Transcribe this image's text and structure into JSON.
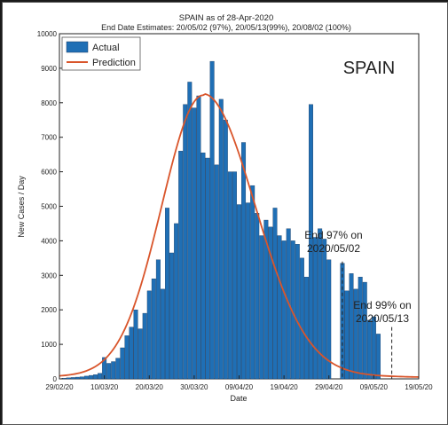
{
  "chart_data": {
    "type": "bar",
    "title": "SPAIN as of 28-Apr-2020",
    "subtitle": "End Date Estimates: 20/05/02 (97%), 20/05/13(99%), 20/08/02 (100%)",
    "country_label": "SPAIN",
    "xlabel": "Date",
    "ylabel": "New Cases / Day",
    "ylim": [
      0,
      10000
    ],
    "yticks": [
      0,
      1000,
      2000,
      3000,
      4000,
      5000,
      6000,
      7000,
      8000,
      9000,
      10000
    ],
    "xticks": [
      "29/02/20",
      "10/03/20",
      "20/03/20",
      "30/03/20",
      "09/04/20",
      "19/04/20",
      "29/04/20",
      "09/05/20",
      "19/05/20"
    ],
    "grid": false,
    "legend_position": "top-left",
    "series": [
      {
        "name": "Actual",
        "kind": "bar",
        "color": "#1f6fb5",
        "start_date": "2020-03-01",
        "values": [
          20,
          30,
          40,
          50,
          60,
          80,
          100,
          120,
          160,
          620,
          450,
          500,
          600,
          900,
          1250,
          1500,
          2000,
          1450,
          1900,
          2550,
          2900,
          3450,
          2600,
          4950,
          3650,
          4500,
          6600,
          7950,
          8600,
          7850,
          8200,
          6550,
          6400,
          9200,
          6200,
          8100,
          7500,
          6000,
          6000,
          5050,
          6850,
          5100,
          5600,
          4800,
          4150,
          4600,
          4400,
          4950,
          4150,
          4000,
          4350,
          4000,
          3900,
          3500,
          2950,
          7950,
          4100,
          4350,
          4050,
          3450,
          0,
          0,
          3350,
          2550,
          3050,
          2600,
          2950,
          2800,
          1700,
          1800,
          1300
        ]
      },
      {
        "name": "Prediction",
        "kind": "line",
        "color": "#d9552b"
      }
    ],
    "annotations": [
      {
        "line1": "End 97% on",
        "line2": "2020/05/02",
        "date": "2020-05-02"
      },
      {
        "line1": "End 99% on",
        "line2": "2020/05/13",
        "date": "2020-05-13"
      }
    ]
  }
}
